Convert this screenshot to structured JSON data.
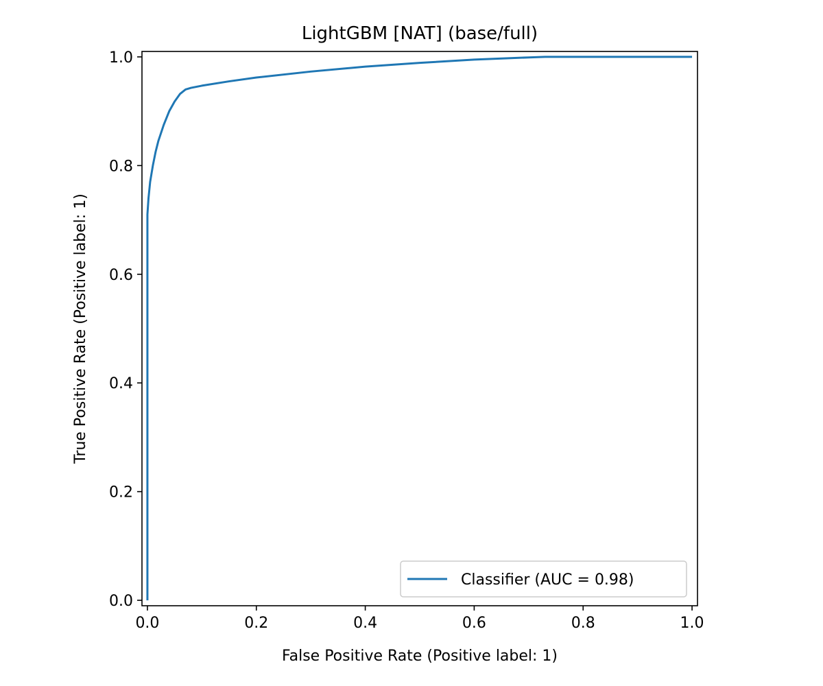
{
  "chart_data": {
    "type": "line",
    "title": "LightGBM [NAT] (base/full)",
    "xlabel": "False Positive Rate (Positive label: 1)",
    "ylabel": "True Positive Rate (Positive label: 1)",
    "xlim": [
      -0.01,
      1.01
    ],
    "ylim": [
      -0.01,
      1.01
    ],
    "xticks": [
      0.0,
      0.2,
      0.4,
      0.6,
      0.8,
      1.0
    ],
    "xtick_labels": [
      "0.0",
      "0.2",
      "0.4",
      "0.6",
      "0.8",
      "1.0"
    ],
    "yticks": [
      0.0,
      0.2,
      0.4,
      0.6,
      0.8,
      1.0
    ],
    "ytick_labels": [
      "0.0",
      "0.2",
      "0.4",
      "0.6",
      "0.8",
      "1.0"
    ],
    "grid": false,
    "legend_position": "lower-right",
    "series": [
      {
        "name": "Classifier (AUC = 0.98)",
        "color": "#1f77b4",
        "x": [
          0.0,
          0.0,
          0.0,
          0.002,
          0.005,
          0.01,
          0.015,
          0.02,
          0.03,
          0.04,
          0.05,
          0.06,
          0.07,
          0.08,
          0.1,
          0.15,
          0.2,
          0.3,
          0.4,
          0.5,
          0.6,
          0.7,
          0.73,
          0.8,
          0.9,
          1.0
        ],
        "y": [
          0.0,
          0.5,
          0.71,
          0.74,
          0.77,
          0.8,
          0.825,
          0.845,
          0.875,
          0.9,
          0.918,
          0.932,
          0.94,
          0.943,
          0.947,
          0.955,
          0.962,
          0.973,
          0.982,
          0.989,
          0.995,
          0.999,
          1.0,
          1.0,
          1.0,
          1.0
        ]
      }
    ]
  }
}
